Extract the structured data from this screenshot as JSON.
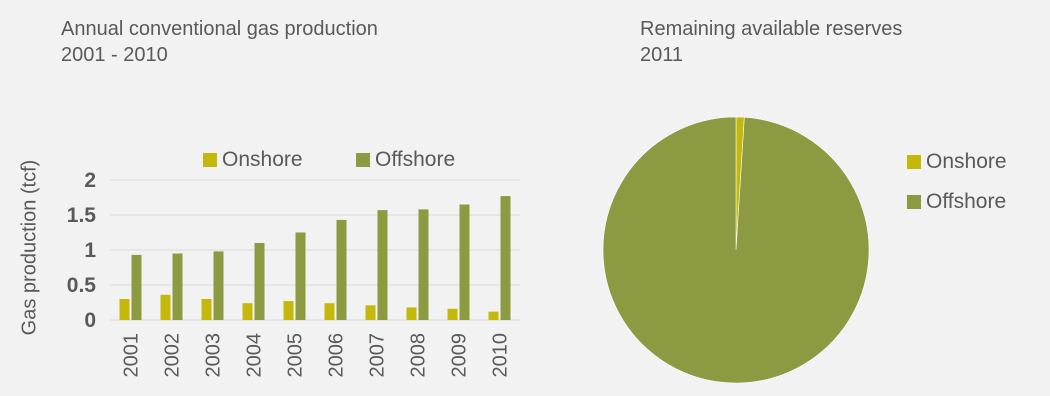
{
  "colors": {
    "onshore": "#c4b80a",
    "offshore": "#8c9a42",
    "gridline": "#d9d9d9",
    "text": "#595959"
  },
  "chart_data": [
    {
      "type": "bar",
      "title_line1": "Annual conventional gas production",
      "title_line2": "2001 - 2010",
      "xlabel": "",
      "ylabel": "Gas production (tcf)",
      "ylim": [
        0,
        2
      ],
      "yticks": [
        "0",
        "0.5",
        "1",
        "1.5",
        "2"
      ],
      "ytick_values": [
        0,
        0.5,
        1,
        1.5,
        2
      ],
      "grid": true,
      "legend_position": "top",
      "categories": [
        "2001",
        "2002",
        "2003",
        "2004",
        "2005",
        "2006",
        "2007",
        "2008",
        "2009",
        "2010"
      ],
      "series": [
        {
          "name": "Onshore",
          "values": [
            0.3,
            0.36,
            0.3,
            0.24,
            0.27,
            0.24,
            0.21,
            0.18,
            0.16,
            0.12
          ]
        },
        {
          "name": "Offshore",
          "values": [
            0.93,
            0.95,
            0.98,
            1.1,
            1.25,
            1.43,
            1.57,
            1.58,
            1.65,
            1.77
          ]
        }
      ]
    },
    {
      "type": "pie",
      "title_line1": "Remaining available reserves",
      "title_line2": "2011",
      "legend_position": "right",
      "slices": [
        {
          "name": "Onshore",
          "value": 1
        },
        {
          "name": "Offshore",
          "value": 99
        }
      ]
    }
  ]
}
